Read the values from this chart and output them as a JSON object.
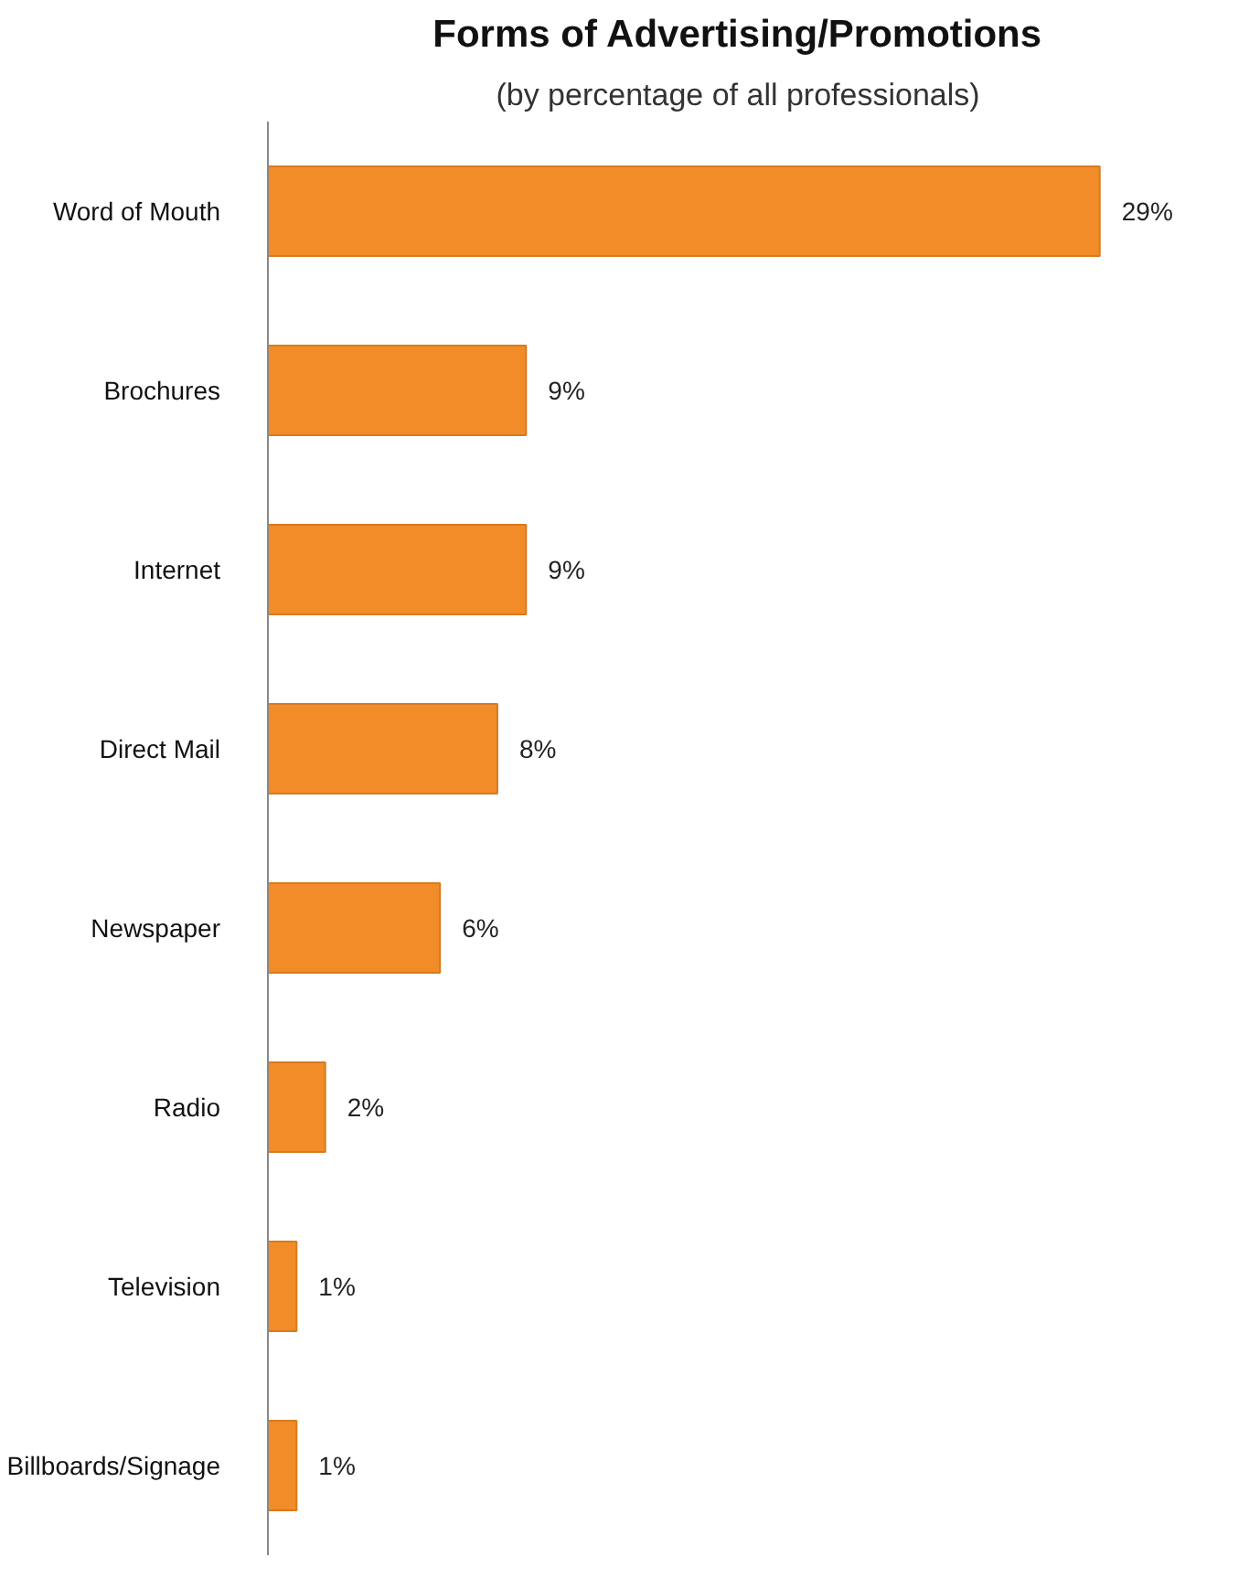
{
  "chart_data": {
    "type": "bar",
    "orientation": "horizontal",
    "title": "Forms of Advertising/Promotions",
    "subtitle": "(by percentage of all professionals)",
    "categories": [
      "Word of Mouth",
      "Brochures",
      "Internet",
      "Direct Mail",
      "Newspaper",
      "Radio",
      "Television",
      "Billboards/Signage"
    ],
    "values": [
      29,
      9,
      9,
      8,
      6,
      2,
      1,
      1
    ],
    "value_labels": [
      "29%",
      "9%",
      "9%",
      "8%",
      "6%",
      "2%",
      "1%",
      "1%"
    ],
    "color": "#f28c28"
  }
}
